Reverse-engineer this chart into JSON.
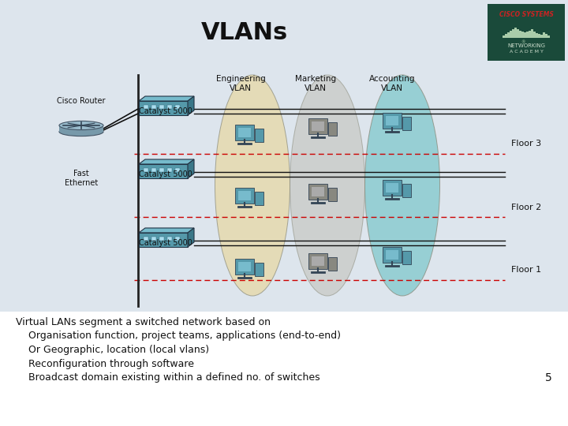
{
  "title": "VLANs",
  "bg_color": "#dde5ed",
  "bottom_bg": "#ffffff",
  "title_fontsize": 22,
  "body_lines": [
    "Virtual LANs segment a switched network based on",
    "    Organisation function, project teams, applications (end-to-end)",
    "    Or Geographic, location (local vlans)",
    "    Reconfiguration through software",
    "    Broadcast domain existing within a defined no. of switches"
  ],
  "slide_number": "5",
  "vlan_labels": [
    "Engineering\nVLAN",
    "Marketing\nVLAN",
    "Accounting\nVLAN"
  ],
  "vlan_colors": [
    "#e8d8a0",
    "#c0c0b8",
    "#80c8cc"
  ],
  "vlan_alphas": [
    0.7,
    0.55,
    0.75
  ],
  "floor_labels": [
    "Floor 3",
    "Floor 2",
    "Floor 1"
  ],
  "switch_label": "Catalyst 5000",
  "router_label": "Cisco Router",
  "fast_ethernet_label": "Fast\nEthernet"
}
